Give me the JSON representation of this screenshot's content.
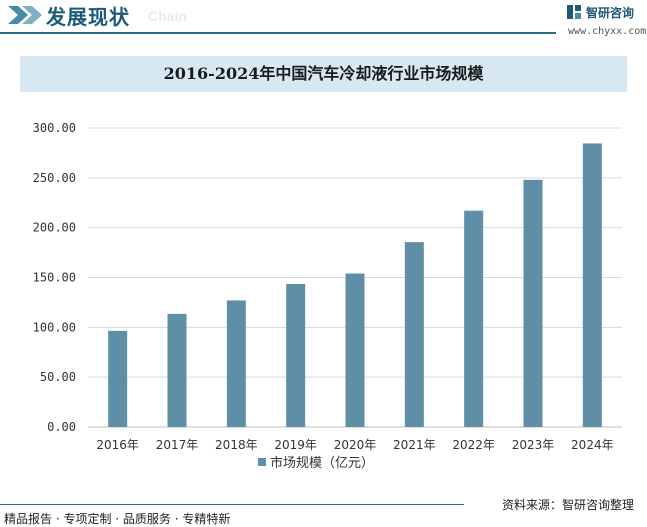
{
  "header": {
    "section_title": "发展现状",
    "section_title_en": "Chain",
    "brand_name": "智研咨询",
    "brand_url": "www.chyxx.com"
  },
  "chart_data": {
    "type": "bar",
    "title": "2016-2024年中国汽车冷却液行业市场规模",
    "categories": [
      "2016年",
      "2017年",
      "2018年",
      "2019年",
      "2020年",
      "2021年",
      "2022年",
      "2023年",
      "2024年"
    ],
    "series": [
      {
        "name": "市场规模（亿元）",
        "values": [
          96.5,
          113.5,
          127.0,
          143.5,
          154.0,
          185.5,
          217.0,
          248.0,
          284.5
        ]
      }
    ],
    "ylim": [
      0,
      300
    ],
    "yticks": [
      "0.00",
      "50.00",
      "100.00",
      "150.00",
      "200.00",
      "250.00",
      "300.00"
    ],
    "grid": true,
    "legend": "bottom",
    "colors": {
      "bar": "#5f8fa6",
      "grid": "#d9d9d9",
      "axis": "#bfbfbf"
    }
  },
  "footer": {
    "tags": "精品报告 · 专项定制 · 品质服务 · 专精特新",
    "source": "资料来源：智研咨询整理"
  }
}
